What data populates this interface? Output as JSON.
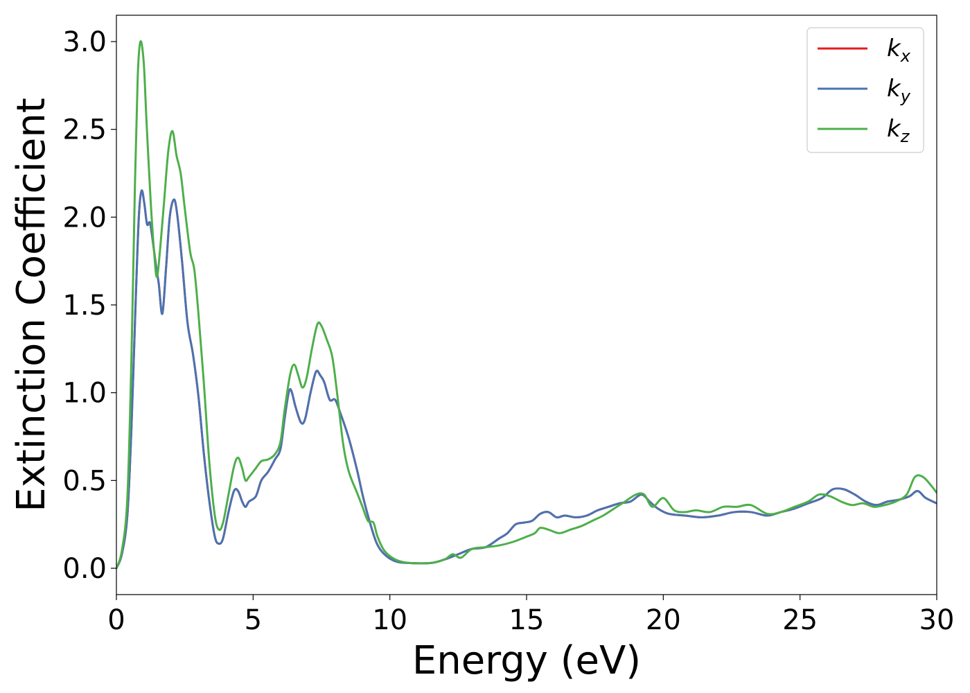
{
  "chart_data": {
    "type": "line",
    "title": "",
    "xlabel": "Energy (eV)",
    "ylabel": "Extinction Coefficient",
    "xlim": [
      0,
      30
    ],
    "ylim": [
      -0.15,
      3.15
    ],
    "xticks": [
      "0",
      "5",
      "10",
      "15",
      "20",
      "25",
      "30"
    ],
    "yticks": [
      "0.0",
      "0.5",
      "1.0",
      "1.5",
      "2.0",
      "2.5",
      "3.0"
    ],
    "grid": false,
    "legend_position": "top-right",
    "series": [
      {
        "name": "k",
        "sub": "x",
        "color": "#e41a1c",
        "points": [
          [
            0,
            0.0
          ],
          [
            0.2,
            0.08
          ],
          [
            0.4,
            0.3
          ],
          [
            0.55,
            0.8
          ],
          [
            0.7,
            1.5
          ],
          [
            0.82,
            2.0
          ],
          [
            0.92,
            2.15
          ],
          [
            1.02,
            2.08
          ],
          [
            1.12,
            1.96
          ],
          [
            1.22,
            1.97
          ],
          [
            1.3,
            1.9
          ],
          [
            1.45,
            1.72
          ],
          [
            1.55,
            1.62
          ],
          [
            1.68,
            1.45
          ],
          [
            1.82,
            1.72
          ],
          [
            1.95,
            2.0
          ],
          [
            2.1,
            2.1
          ],
          [
            2.22,
            2.02
          ],
          [
            2.4,
            1.75
          ],
          [
            2.6,
            1.4
          ],
          [
            2.8,
            1.22
          ],
          [
            3.0,
            0.98
          ],
          [
            3.2,
            0.65
          ],
          [
            3.4,
            0.38
          ],
          [
            3.6,
            0.18
          ],
          [
            3.75,
            0.14
          ],
          [
            3.9,
            0.17
          ],
          [
            4.1,
            0.32
          ],
          [
            4.3,
            0.44
          ],
          [
            4.45,
            0.44
          ],
          [
            4.6,
            0.38
          ],
          [
            4.72,
            0.35
          ],
          [
            4.85,
            0.38
          ],
          [
            5.1,
            0.41
          ],
          [
            5.3,
            0.5
          ],
          [
            5.55,
            0.55
          ],
          [
            5.8,
            0.62
          ],
          [
            6.0,
            0.68
          ],
          [
            6.15,
            0.85
          ],
          [
            6.3,
            1.0
          ],
          [
            6.4,
            1.01
          ],
          [
            6.55,
            0.92
          ],
          [
            6.75,
            0.83
          ],
          [
            6.9,
            0.85
          ],
          [
            7.1,
            1.0
          ],
          [
            7.3,
            1.12
          ],
          [
            7.45,
            1.1
          ],
          [
            7.6,
            1.06
          ],
          [
            7.8,
            0.96
          ],
          [
            8.0,
            0.96
          ],
          [
            8.2,
            0.88
          ],
          [
            8.5,
            0.74
          ],
          [
            8.8,
            0.56
          ],
          [
            9.0,
            0.42
          ],
          [
            9.2,
            0.3
          ],
          [
            9.5,
            0.15
          ],
          [
            9.8,
            0.08
          ],
          [
            10.2,
            0.04
          ],
          [
            10.7,
            0.03
          ],
          [
            11.5,
            0.03
          ],
          [
            12.0,
            0.05
          ],
          [
            12.5,
            0.08
          ],
          [
            13.0,
            0.11
          ],
          [
            13.5,
            0.12
          ],
          [
            14.0,
            0.17
          ],
          [
            14.3,
            0.2
          ],
          [
            14.6,
            0.25
          ],
          [
            14.9,
            0.26
          ],
          [
            15.2,
            0.27
          ],
          [
            15.5,
            0.31
          ],
          [
            15.8,
            0.32
          ],
          [
            16.1,
            0.29
          ],
          [
            16.4,
            0.3
          ],
          [
            16.8,
            0.29
          ],
          [
            17.2,
            0.3
          ],
          [
            17.6,
            0.33
          ],
          [
            18.0,
            0.35
          ],
          [
            18.4,
            0.37
          ],
          [
            18.8,
            0.38
          ],
          [
            19.2,
            0.42
          ],
          [
            19.5,
            0.38
          ],
          [
            19.8,
            0.34
          ],
          [
            20.2,
            0.31
          ],
          [
            20.8,
            0.3
          ],
          [
            21.4,
            0.29
          ],
          [
            22.0,
            0.3
          ],
          [
            22.6,
            0.32
          ],
          [
            23.2,
            0.32
          ],
          [
            23.8,
            0.3
          ],
          [
            24.3,
            0.32
          ],
          [
            24.8,
            0.34
          ],
          [
            25.3,
            0.37
          ],
          [
            25.8,
            0.4
          ],
          [
            26.2,
            0.45
          ],
          [
            26.6,
            0.45
          ],
          [
            27.0,
            0.42
          ],
          [
            27.4,
            0.38
          ],
          [
            27.8,
            0.36
          ],
          [
            28.2,
            0.38
          ],
          [
            28.6,
            0.39
          ],
          [
            29.0,
            0.41
          ],
          [
            29.3,
            0.44
          ],
          [
            29.6,
            0.4
          ],
          [
            30.0,
            0.37
          ]
        ]
      },
      {
        "name": "k",
        "sub": "y",
        "color": "#4a73b1",
        "points": [
          [
            0,
            0.0
          ],
          [
            0.2,
            0.08
          ],
          [
            0.4,
            0.3
          ],
          [
            0.55,
            0.8
          ],
          [
            0.7,
            1.5
          ],
          [
            0.82,
            2.0
          ],
          [
            0.92,
            2.15
          ],
          [
            1.02,
            2.08
          ],
          [
            1.12,
            1.96
          ],
          [
            1.22,
            1.97
          ],
          [
            1.3,
            1.9
          ],
          [
            1.45,
            1.72
          ],
          [
            1.55,
            1.62
          ],
          [
            1.68,
            1.45
          ],
          [
            1.82,
            1.72
          ],
          [
            1.95,
            2.0
          ],
          [
            2.1,
            2.1
          ],
          [
            2.22,
            2.02
          ],
          [
            2.4,
            1.75
          ],
          [
            2.6,
            1.4
          ],
          [
            2.8,
            1.22
          ],
          [
            3.0,
            0.98
          ],
          [
            3.2,
            0.65
          ],
          [
            3.4,
            0.38
          ],
          [
            3.6,
            0.18
          ],
          [
            3.75,
            0.14
          ],
          [
            3.9,
            0.17
          ],
          [
            4.1,
            0.32
          ],
          [
            4.3,
            0.44
          ],
          [
            4.45,
            0.44
          ],
          [
            4.6,
            0.38
          ],
          [
            4.72,
            0.35
          ],
          [
            4.85,
            0.38
          ],
          [
            5.1,
            0.41
          ],
          [
            5.3,
            0.5
          ],
          [
            5.55,
            0.55
          ],
          [
            5.8,
            0.62
          ],
          [
            6.0,
            0.68
          ],
          [
            6.15,
            0.85
          ],
          [
            6.3,
            1.0
          ],
          [
            6.4,
            1.01
          ],
          [
            6.55,
            0.92
          ],
          [
            6.75,
            0.83
          ],
          [
            6.9,
            0.85
          ],
          [
            7.1,
            1.0
          ],
          [
            7.3,
            1.12
          ],
          [
            7.45,
            1.1
          ],
          [
            7.6,
            1.06
          ],
          [
            7.8,
            0.96
          ],
          [
            8.0,
            0.96
          ],
          [
            8.2,
            0.88
          ],
          [
            8.5,
            0.74
          ],
          [
            8.8,
            0.56
          ],
          [
            9.0,
            0.42
          ],
          [
            9.2,
            0.3
          ],
          [
            9.5,
            0.15
          ],
          [
            9.8,
            0.08
          ],
          [
            10.2,
            0.04
          ],
          [
            10.7,
            0.03
          ],
          [
            11.5,
            0.03
          ],
          [
            12.0,
            0.05
          ],
          [
            12.5,
            0.08
          ],
          [
            13.0,
            0.11
          ],
          [
            13.5,
            0.12
          ],
          [
            14.0,
            0.17
          ],
          [
            14.3,
            0.2
          ],
          [
            14.6,
            0.25
          ],
          [
            14.9,
            0.26
          ],
          [
            15.2,
            0.27
          ],
          [
            15.5,
            0.31
          ],
          [
            15.8,
            0.32
          ],
          [
            16.1,
            0.29
          ],
          [
            16.4,
            0.3
          ],
          [
            16.8,
            0.29
          ],
          [
            17.2,
            0.3
          ],
          [
            17.6,
            0.33
          ],
          [
            18.0,
            0.35
          ],
          [
            18.4,
            0.37
          ],
          [
            18.8,
            0.38
          ],
          [
            19.2,
            0.42
          ],
          [
            19.5,
            0.38
          ],
          [
            19.8,
            0.34
          ],
          [
            20.2,
            0.31
          ],
          [
            20.8,
            0.3
          ],
          [
            21.4,
            0.29
          ],
          [
            22.0,
            0.3
          ],
          [
            22.6,
            0.32
          ],
          [
            23.2,
            0.32
          ],
          [
            23.8,
            0.3
          ],
          [
            24.3,
            0.32
          ],
          [
            24.8,
            0.34
          ],
          [
            25.3,
            0.37
          ],
          [
            25.8,
            0.4
          ],
          [
            26.2,
            0.45
          ],
          [
            26.6,
            0.45
          ],
          [
            27.0,
            0.42
          ],
          [
            27.4,
            0.38
          ],
          [
            27.8,
            0.36
          ],
          [
            28.2,
            0.38
          ],
          [
            28.6,
            0.39
          ],
          [
            29.0,
            0.41
          ],
          [
            29.3,
            0.44
          ],
          [
            29.6,
            0.4
          ],
          [
            30.0,
            0.37
          ]
        ]
      },
      {
        "name": "k",
        "sub": "z",
        "color": "#4daf4a",
        "points": [
          [
            0,
            0.0
          ],
          [
            0.2,
            0.1
          ],
          [
            0.4,
            0.4
          ],
          [
            0.55,
            1.2
          ],
          [
            0.68,
            2.2
          ],
          [
            0.78,
            2.8
          ],
          [
            0.88,
            3.0
          ],
          [
            1.0,
            2.88
          ],
          [
            1.1,
            2.55
          ],
          [
            1.25,
            2.1
          ],
          [
            1.38,
            1.8
          ],
          [
            1.48,
            1.66
          ],
          [
            1.6,
            1.82
          ],
          [
            1.75,
            2.1
          ],
          [
            1.9,
            2.38
          ],
          [
            2.05,
            2.49
          ],
          [
            2.2,
            2.35
          ],
          [
            2.35,
            2.25
          ],
          [
            2.5,
            2.05
          ],
          [
            2.7,
            1.8
          ],
          [
            2.85,
            1.7
          ],
          [
            3.0,
            1.45
          ],
          [
            3.2,
            1.05
          ],
          [
            3.4,
            0.6
          ],
          [
            3.6,
            0.3
          ],
          [
            3.75,
            0.22
          ],
          [
            3.9,
            0.26
          ],
          [
            4.1,
            0.42
          ],
          [
            4.3,
            0.58
          ],
          [
            4.45,
            0.63
          ],
          [
            4.6,
            0.57
          ],
          [
            4.72,
            0.5
          ],
          [
            4.85,
            0.52
          ],
          [
            5.1,
            0.57
          ],
          [
            5.3,
            0.61
          ],
          [
            5.55,
            0.62
          ],
          [
            5.8,
            0.65
          ],
          [
            6.0,
            0.72
          ],
          [
            6.15,
            0.9
          ],
          [
            6.35,
            1.1
          ],
          [
            6.5,
            1.16
          ],
          [
            6.65,
            1.1
          ],
          [
            6.8,
            1.03
          ],
          [
            6.95,
            1.08
          ],
          [
            7.15,
            1.25
          ],
          [
            7.35,
            1.39
          ],
          [
            7.5,
            1.38
          ],
          [
            7.7,
            1.3
          ],
          [
            7.9,
            1.2
          ],
          [
            8.1,
            0.96
          ],
          [
            8.3,
            0.7
          ],
          [
            8.5,
            0.55
          ],
          [
            8.8,
            0.43
          ],
          [
            9.0,
            0.35
          ],
          [
            9.2,
            0.27
          ],
          [
            9.4,
            0.26
          ],
          [
            9.55,
            0.18
          ],
          [
            9.8,
            0.1
          ],
          [
            10.2,
            0.05
          ],
          [
            10.7,
            0.03
          ],
          [
            11.5,
            0.03
          ],
          [
            12.0,
            0.05
          ],
          [
            12.3,
            0.08
          ],
          [
            12.6,
            0.06
          ],
          [
            13.0,
            0.11
          ],
          [
            13.5,
            0.12
          ],
          [
            14.0,
            0.13
          ],
          [
            14.5,
            0.15
          ],
          [
            15.0,
            0.18
          ],
          [
            15.3,
            0.2
          ],
          [
            15.5,
            0.23
          ],
          [
            15.8,
            0.22
          ],
          [
            16.2,
            0.2
          ],
          [
            16.6,
            0.22
          ],
          [
            17.0,
            0.24
          ],
          [
            17.4,
            0.27
          ],
          [
            17.8,
            0.3
          ],
          [
            18.2,
            0.34
          ],
          [
            18.6,
            0.38
          ],
          [
            19.0,
            0.42
          ],
          [
            19.3,
            0.42
          ],
          [
            19.6,
            0.35
          ],
          [
            20.0,
            0.4
          ],
          [
            20.4,
            0.33
          ],
          [
            20.8,
            0.32
          ],
          [
            21.2,
            0.33
          ],
          [
            21.7,
            0.32
          ],
          [
            22.2,
            0.35
          ],
          [
            22.7,
            0.35
          ],
          [
            23.2,
            0.36
          ],
          [
            23.8,
            0.31
          ],
          [
            24.3,
            0.32
          ],
          [
            24.8,
            0.35
          ],
          [
            25.3,
            0.38
          ],
          [
            25.7,
            0.42
          ],
          [
            26.1,
            0.41
          ],
          [
            26.5,
            0.38
          ],
          [
            26.9,
            0.36
          ],
          [
            27.3,
            0.37
          ],
          [
            27.7,
            0.35
          ],
          [
            28.1,
            0.36
          ],
          [
            28.5,
            0.38
          ],
          [
            28.9,
            0.42
          ],
          [
            29.2,
            0.52
          ],
          [
            29.5,
            0.52
          ],
          [
            29.8,
            0.47
          ],
          [
            30.0,
            0.43
          ]
        ]
      }
    ]
  }
}
